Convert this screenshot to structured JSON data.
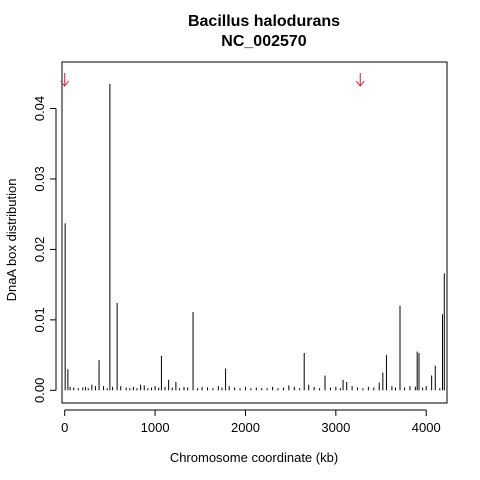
{
  "chart_data": {
    "type": "bar",
    "title": "Bacillus halodurans",
    "subtitle": "NC_002570",
    "xlabel": "Chromosome coordinate (kb)",
    "ylabel": "DnaA box distribution",
    "xlim": [
      -30,
      4230
    ],
    "ylim": [
      -0.0018,
      0.0466
    ],
    "x_ticks": [
      0,
      1000,
      2000,
      3000,
      4000
    ],
    "x_tick_labels": [
      "0",
      "1000",
      "2000",
      "3000",
      "4000"
    ],
    "y_ticks": [
      0.0,
      0.01,
      0.02,
      0.03,
      0.04
    ],
    "y_tick_labels": [
      "0.00",
      "0.01",
      "0.02",
      "0.03",
      "0.04"
    ],
    "grid": false,
    "bar_color": "#000000",
    "series": [
      {
        "x": [
          5,
          35,
          60,
          100,
          150,
          200,
          230,
          260,
          300,
          340,
          380,
          430,
          470,
          500,
          530,
          580,
          620,
          680,
          720,
          760,
          800,
          840,
          880,
          920,
          960,
          1000,
          1040,
          1070,
          1110,
          1150,
          1190,
          1230,
          1270,
          1320,
          1360,
          1420,
          1470,
          1520,
          1580,
          1640,
          1700,
          1740,
          1780,
          1820,
          1880,
          1940,
          2000,
          2060,
          2120,
          2180,
          2240,
          2300,
          2360,
          2420,
          2480,
          2540,
          2600,
          2650,
          2700,
          2760,
          2820,
          2880,
          2940,
          3000,
          3050,
          3080,
          3120,
          3180,
          3240,
          3300,
          3360,
          3420,
          3480,
          3520,
          3560,
          3620,
          3660,
          3710,
          3760,
          3820,
          3880,
          3900,
          3920,
          3960,
          4000,
          4060,
          4100,
          4150,
          4180,
          4200
        ],
        "y": [
          0.0237,
          0.003,
          0.0005,
          0.0004,
          0.0003,
          0.0004,
          0.0005,
          0.0003,
          0.0008,
          0.0006,
          0.0043,
          0.0006,
          0.0003,
          0.0435,
          0.0005,
          0.0124,
          0.0006,
          0.0004,
          0.0003,
          0.0005,
          0.0003,
          0.0008,
          0.0007,
          0.0003,
          0.0004,
          0.0006,
          0.0004,
          0.0049,
          0.0005,
          0.0015,
          0.0004,
          0.0012,
          0.0003,
          0.0005,
          0.0004,
          0.0111,
          0.0003,
          0.0005,
          0.0004,
          0.0003,
          0.0006,
          0.0004,
          0.0031,
          0.0006,
          0.0004,
          0.0003,
          0.0005,
          0.0003,
          0.0004,
          0.0003,
          0.0003,
          0.0005,
          0.0003,
          0.0004,
          0.0007,
          0.0005,
          0.0003,
          0.0053,
          0.0008,
          0.0005,
          0.0003,
          0.0021,
          0.0004,
          0.0005,
          0.0003,
          0.0015,
          0.0012,
          0.0006,
          0.0004,
          0.0003,
          0.0005,
          0.0004,
          0.0011,
          0.0025,
          0.005,
          0.0006,
          0.0004,
          0.012,
          0.0004,
          0.0006,
          0.0005,
          0.0055,
          0.0053,
          0.0004,
          0.0006,
          0.0021,
          0.0035,
          0.0003,
          0.0108,
          0.0166
        ]
      }
    ],
    "annotations": [
      {
        "type": "arrow",
        "x": 0,
        "color": "#e8112d"
      },
      {
        "type": "arrow",
        "x": 3270,
        "color": "#e8112d"
      }
    ]
  }
}
